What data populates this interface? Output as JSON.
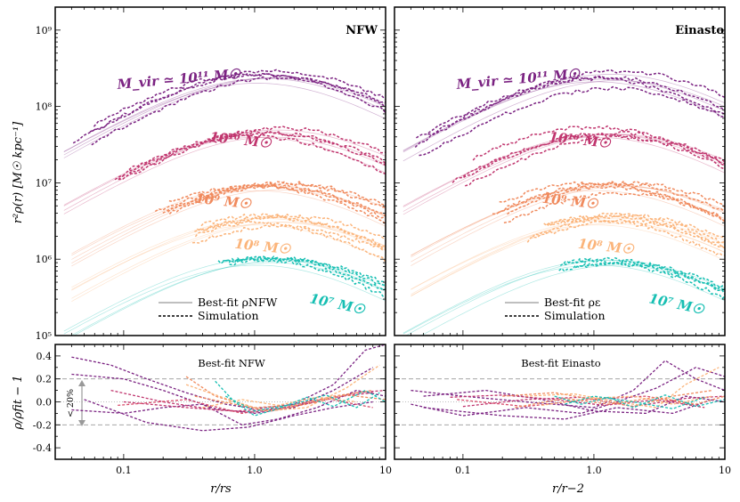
{
  "figure": {
    "ylabel_top": "r²ρ(r) [M☉ kpc⁻¹]",
    "ylabel_bottom": "ρ/ρfit − 1",
    "xlabel_left": "r/rs",
    "xlabel_right": "r/r−2",
    "band_annotation": "< 20%"
  },
  "panels": [
    {
      "id": "nfw",
      "title": "NFW",
      "legend": {
        "fit": "Best-fit ρNFW",
        "sim": "Simulation"
      },
      "residual_title": "Best-fit NFW"
    },
    {
      "id": "einasto",
      "title": "Einasto",
      "legend": {
        "fit": "Best-fit ρε",
        "sim": "Simulation"
      },
      "residual_title": "Best-fit Einasto"
    }
  ],
  "chart_data": [
    {
      "type": "line",
      "panel": "NFW profile",
      "xscale": "log",
      "yscale": "log",
      "xlim": [
        0.03,
        10
      ],
      "ylim": [
        100000,
        2000000000
      ],
      "x_ticks": [
        0.1,
        1.0,
        10
      ],
      "y_ticks": [
        100000,
        1000000,
        10000000,
        100000000,
        1000000000
      ],
      "y_tick_labels": [
        "10⁵",
        "10⁶",
        "10⁷",
        "10⁸",
        "10⁹"
      ],
      "series": [
        {
          "name": "M_vir ≃ 10¹¹ M☉",
          "color": "#7b2382",
          "fit_peak": 230000000,
          "fit_xmin": 0.035,
          "sim_xmin": 0.04,
          "sim_spread": 0.2,
          "count": 4
        },
        {
          "name": "10¹⁰ M☉",
          "color": "#c0356e",
          "fit_peak": 45000000,
          "fit_xmin": 0.035,
          "sim_xmin": 0.08,
          "sim_spread": 0.14,
          "count": 4
        },
        {
          "name": "10⁹ M☉",
          "color": "#f08a5d",
          "fit_peak": 9000000,
          "fit_xmin": 0.04,
          "sim_xmin": 0.15,
          "sim_spread": 0.14,
          "count": 5
        },
        {
          "name": "10⁸ M☉",
          "color": "#fbb47a",
          "fit_peak": 3200000,
          "fit_xmin": 0.04,
          "sim_xmin": 0.3,
          "sim_spread": 0.14,
          "count": 5
        },
        {
          "name": "10⁷ M☉",
          "color": "#17bfb3",
          "fit_peak": 950000,
          "fit_xmin": 0.035,
          "sim_xmin": 0.5,
          "sim_spread": 0.06,
          "count": 4
        }
      ],
      "residual": {
        "ylim": [
          -0.5,
          0.5
        ],
        "y_ticks": [
          -0.4,
          -0.2,
          0.0,
          0.2,
          0.4
        ],
        "band": [
          -0.2,
          0.2
        ],
        "lines": [
          {
            "color": "#7b2382",
            "points": [
              [
                0.04,
                0.39
              ],
              [
                0.08,
                0.32
              ],
              [
                0.15,
                0.2
              ],
              [
                0.3,
                0.08
              ],
              [
                0.6,
                -0.02
              ],
              [
                1.0,
                -0.06
              ],
              [
                2.0,
                -0.02
              ],
              [
                4.0,
                0.15
              ],
              [
                7.0,
                0.45
              ],
              [
                10.0,
                0.5
              ]
            ]
          },
          {
            "color": "#7b2382",
            "points": [
              [
                0.04,
                0.24
              ],
              [
                0.1,
                0.2
              ],
              [
                0.2,
                0.1
              ],
              [
                0.5,
                -0.06
              ],
              [
                1.0,
                -0.1
              ],
              [
                2.0,
                -0.05
              ],
              [
                4.0,
                0.1
              ],
              [
                8.0,
                0.3
              ]
            ]
          },
          {
            "color": "#7b2382",
            "points": [
              [
                0.04,
                -0.07
              ],
              [
                0.1,
                -0.1
              ],
              [
                0.2,
                -0.05
              ],
              [
                0.4,
                -0.02
              ],
              [
                0.8,
                -0.2
              ],
              [
                1.5,
                -0.15
              ],
              [
                3.0,
                -0.05
              ],
              [
                6.0,
                0.1
              ],
              [
                10.0,
                0.05
              ]
            ]
          },
          {
            "color": "#7b2382",
            "points": [
              [
                0.05,
                0.02
              ],
              [
                0.15,
                -0.18
              ],
              [
                0.4,
                -0.25
              ],
              [
                0.9,
                -0.22
              ],
              [
                2.0,
                -0.12
              ],
              [
                4.0,
                -0.05
              ],
              [
                8.0,
                0.0
              ]
            ]
          },
          {
            "color": "#c0356e",
            "points": [
              [
                0.08,
                0.1
              ],
              [
                0.2,
                0.0
              ],
              [
                0.5,
                -0.07
              ],
              [
                1.0,
                -0.09
              ],
              [
                2.0,
                -0.04
              ],
              [
                4.0,
                0.04
              ],
              [
                8.0,
                0.08
              ]
            ]
          },
          {
            "color": "#c0356e",
            "points": [
              [
                0.1,
                0.0
              ],
              [
                0.3,
                -0.05
              ],
              [
                0.7,
                -0.08
              ],
              [
                1.5,
                -0.06
              ],
              [
                3.0,
                0.0
              ],
              [
                6.0,
                0.08
              ],
              [
                10.0,
                0.1
              ]
            ]
          },
          {
            "color": "#d84a6a",
            "points": [
              [
                0.09,
                -0.03
              ],
              [
                0.3,
                0.02
              ],
              [
                0.8,
                -0.1
              ],
              [
                1.6,
                -0.04
              ],
              [
                3.5,
                0.03
              ],
              [
                8.0,
                -0.05
              ]
            ]
          },
          {
            "color": "#f08a5d",
            "points": [
              [
                0.3,
                0.22
              ],
              [
                0.5,
                0.05
              ],
              [
                1.0,
                -0.05
              ],
              [
                2.0,
                -0.03
              ],
              [
                4.0,
                0.05
              ],
              [
                8.0,
                0.1
              ]
            ]
          },
          {
            "color": "#f08a5d",
            "points": [
              [
                0.35,
                0.05
              ],
              [
                0.7,
                -0.02
              ],
              [
                1.3,
                -0.08
              ],
              [
                2.5,
                -0.02
              ],
              [
                5.0,
                0.06
              ],
              [
                10.0,
                0.02
              ]
            ]
          },
          {
            "color": "#fbb47a",
            "points": [
              [
                0.3,
                0.15
              ],
              [
                0.6,
                0.03
              ],
              [
                1.2,
                -0.08
              ],
              [
                2.5,
                -0.05
              ],
              [
                5.0,
                0.12
              ],
              [
                9.0,
                0.32
              ]
            ]
          },
          {
            "color": "#fbb47a",
            "points": [
              [
                0.4,
                -0.05
              ],
              [
                0.8,
                0.02
              ],
              [
                1.5,
                -0.03
              ],
              [
                3.0,
                0.04
              ],
              [
                6.0,
                0.0
              ]
            ]
          },
          {
            "color": "#17bfb3",
            "points": [
              [
                0.5,
                0.18
              ],
              [
                0.7,
                0.0
              ],
              [
                1.0,
                -0.12
              ],
              [
                1.6,
                -0.05
              ],
              [
                2.5,
                0.04
              ],
              [
                4.0,
                -0.04
              ],
              [
                7.0,
                0.1
              ],
              [
                10.0,
                0.0
              ]
            ]
          },
          {
            "color": "#17bfb3",
            "points": [
              [
                0.6,
                0.05
              ],
              [
                1.0,
                -0.08
              ],
              [
                2.0,
                -0.02
              ],
              [
                3.5,
                0.06
              ],
              [
                6.0,
                -0.05
              ],
              [
                9.0,
                0.08
              ]
            ]
          }
        ]
      }
    },
    {
      "type": "line",
      "panel": "Einasto profile",
      "xscale": "log",
      "yscale": "log",
      "xlim": [
        0.03,
        10
      ],
      "ylim": [
        100000,
        2000000000
      ],
      "x_ticks": [
        0.1,
        1.0,
        10
      ],
      "y_ticks": [
        100000,
        1000000,
        10000000,
        100000000,
        1000000000
      ],
      "series": [
        {
          "name": "M_vir ≃ 10¹¹ M☉",
          "color": "#7b2382",
          "fit_peak": 240000000,
          "fit_xmin": 0.035,
          "sim_xmin": 0.04,
          "sim_spread": 0.2,
          "count": 4
        },
        {
          "name": "10¹⁰ M☉",
          "color": "#c0356e",
          "fit_peak": 45000000,
          "fit_xmin": 0.035,
          "sim_xmin": 0.08,
          "sim_spread": 0.14,
          "count": 4
        },
        {
          "name": "10⁹ M☉",
          "color": "#f08a5d",
          "fit_peak": 9000000,
          "fit_xmin": 0.04,
          "sim_xmin": 0.15,
          "sim_spread": 0.14,
          "count": 5
        },
        {
          "name": "10⁸ M☉",
          "color": "#fbb47a",
          "fit_peak": 3200000,
          "fit_xmin": 0.04,
          "sim_xmin": 0.3,
          "sim_spread": 0.14,
          "count": 5
        },
        {
          "name": "10⁷ M☉",
          "color": "#17bfb3",
          "fit_peak": 950000,
          "fit_xmin": 0.035,
          "sim_xmin": 0.5,
          "sim_spread": 0.06,
          "count": 4
        }
      ],
      "residual": {
        "ylim": [
          -0.5,
          0.5
        ],
        "y_ticks": [
          -0.4,
          -0.2,
          0.0,
          0.2,
          0.4
        ],
        "band": [
          -0.2,
          0.2
        ],
        "lines": [
          {
            "color": "#7b2382",
            "points": [
              [
                0.04,
                0.1
              ],
              [
                0.1,
                0.05
              ],
              [
                0.3,
                0.0
              ],
              [
                1.0,
                -0.05
              ],
              [
                2.0,
                0.1
              ],
              [
                3.5,
                0.36
              ],
              [
                6.0,
                0.2
              ],
              [
                10.0,
                0.1
              ]
            ]
          },
          {
            "color": "#7b2382",
            "points": [
              [
                0.04,
                -0.02
              ],
              [
                0.1,
                -0.12
              ],
              [
                0.3,
                -0.05
              ],
              [
                0.8,
                -0.1
              ],
              [
                1.5,
                0.0
              ],
              [
                3.0,
                0.12
              ],
              [
                6.0,
                0.3
              ],
              [
                10.0,
                0.22
              ]
            ]
          },
          {
            "color": "#7b2382",
            "points": [
              [
                0.05,
                0.05
              ],
              [
                0.15,
                0.1
              ],
              [
                0.4,
                0.02
              ],
              [
                1.0,
                -0.08
              ],
              [
                2.5,
                -0.1
              ],
              [
                5.0,
                0.05
              ],
              [
                10.0,
                0.0
              ]
            ]
          },
          {
            "color": "#7b2382",
            "points": [
              [
                0.05,
                -0.05
              ],
              [
                0.2,
                -0.12
              ],
              [
                0.6,
                -0.15
              ],
              [
                1.5,
                -0.05
              ],
              [
                4.0,
                -0.1
              ],
              [
                8.0,
                0.02
              ]
            ]
          },
          {
            "color": "#c0356e",
            "points": [
              [
                0.08,
                0.04
              ],
              [
                0.2,
                0.06
              ],
              [
                0.5,
                0.02
              ],
              [
                1.2,
                -0.03
              ],
              [
                3.0,
                0.02
              ],
              [
                7.0,
                -0.05
              ]
            ]
          },
          {
            "color": "#c0356e",
            "points": [
              [
                0.1,
                -0.04
              ],
              [
                0.3,
                0.02
              ],
              [
                0.8,
                0.04
              ],
              [
                2.0,
                -0.04
              ],
              [
                5.0,
                0.03
              ],
              [
                10.0,
                0.05
              ]
            ]
          },
          {
            "color": "#d84a6a",
            "points": [
              [
                0.09,
                0.02
              ],
              [
                0.3,
                -0.04
              ],
              [
                0.9,
                0.02
              ],
              [
                2.5,
                0.05
              ],
              [
                6.0,
                -0.03
              ]
            ]
          },
          {
            "color": "#f08a5d",
            "points": [
              [
                0.2,
                0.05
              ],
              [
                0.5,
                0.08
              ],
              [
                1.0,
                0.02
              ],
              [
                2.0,
                -0.04
              ],
              [
                4.0,
                0.05
              ],
              [
                8.0,
                0.1
              ]
            ]
          },
          {
            "color": "#f08a5d",
            "points": [
              [
                0.25,
                -0.05
              ],
              [
                0.6,
                0.03
              ],
              [
                1.3,
                -0.02
              ],
              [
                3.0,
                0.04
              ],
              [
                6.0,
                -0.02
              ],
              [
                10.0,
                0.05
              ]
            ]
          },
          {
            "color": "#fbb47a",
            "points": [
              [
                0.3,
                0.05
              ],
              [
                0.7,
                0.07
              ],
              [
                1.5,
                0.0
              ],
              [
                3.0,
                -0.05
              ],
              [
                5.0,
                0.15
              ],
              [
                9.0,
                0.3
              ]
            ]
          },
          {
            "color": "#fbb47a",
            "points": [
              [
                0.4,
                -0.03
              ],
              [
                0.9,
                0.03
              ],
              [
                2.0,
                0.05
              ],
              [
                4.0,
                -0.02
              ],
              [
                8.0,
                0.05
              ]
            ]
          },
          {
            "color": "#17bfb3",
            "points": [
              [
                0.5,
                0.05
              ],
              [
                0.8,
                -0.02
              ],
              [
                1.3,
                0.04
              ],
              [
                2.0,
                -0.05
              ],
              [
                3.5,
                0.06
              ],
              [
                6.0,
                -0.04
              ],
              [
                10.0,
                0.02
              ]
            ]
          },
          {
            "color": "#17bfb3",
            "points": [
              [
                0.6,
                -0.02
              ],
              [
                1.0,
                0.05
              ],
              [
                2.0,
                0.0
              ],
              [
                4.0,
                -0.06
              ],
              [
                7.0,
                0.04
              ]
            ]
          }
        ]
      }
    }
  ]
}
